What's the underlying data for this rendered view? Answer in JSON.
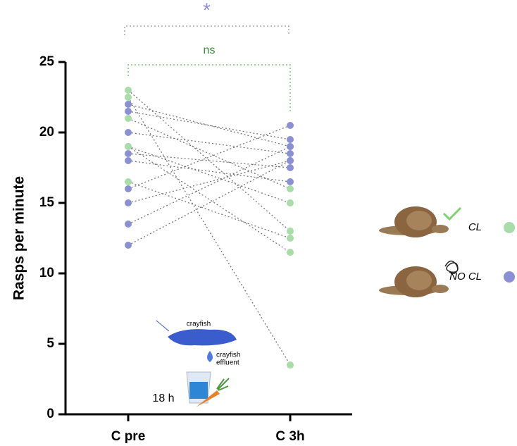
{
  "chart_data": {
    "type": "paired-dot",
    "categories": [
      "C pre",
      "C 3h"
    ],
    "y_label": "Rasps per minute",
    "ylim": [
      0,
      25
    ],
    "yticks": [
      0,
      5,
      10,
      15,
      20,
      25
    ],
    "series": [
      {
        "name": "CL",
        "color": "#a8dca8",
        "values": [
          [
            23,
            13
          ],
          [
            22.5,
            3.5
          ],
          [
            21,
            16
          ],
          [
            19,
            11.5
          ],
          [
            16.5,
            12.5
          ],
          [
            19,
            15
          ]
        ]
      },
      {
        "name": "NO CL",
        "color": "#8b8fd4",
        "values": [
          [
            22,
            19
          ],
          [
            21.5,
            19.5
          ],
          [
            20,
            18.5
          ],
          [
            18.5,
            17.5
          ],
          [
            18,
            16.5
          ],
          [
            16,
            20.5
          ],
          [
            15,
            18
          ],
          [
            13.5,
            19
          ],
          [
            12,
            18
          ]
        ]
      }
    ],
    "significance": [
      {
        "label": "*",
        "color": "#8a8fcf"
      },
      {
        "label": "ns",
        "color": "#3a8a3a"
      }
    ],
    "inset": {
      "animal": "crayfish",
      "effluent": [
        "crayfish",
        "effluent"
      ],
      "duration": "18 h"
    }
  }
}
